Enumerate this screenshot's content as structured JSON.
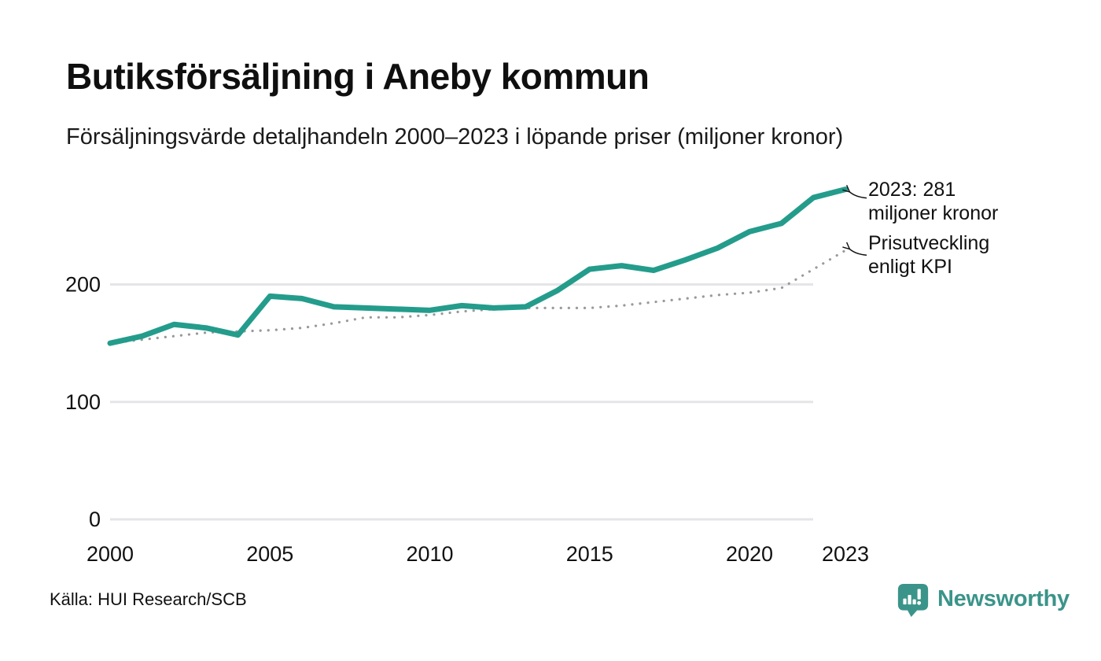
{
  "header": {
    "title": "Butiksförsäljning i Aneby kommun",
    "subtitle": "Försäljningsvärde detaljhandeln 2000–2023 i löpande priser (miljoner kronor)"
  },
  "chart_data": {
    "type": "line",
    "title": "Butiksförsäljning i Aneby kommun",
    "subtitle": "Försäljningsvärde detaljhandeln 2000–2023 i löpande priser (miljoner kronor)",
    "x": [
      2000,
      2001,
      2002,
      2003,
      2004,
      2005,
      2006,
      2007,
      2008,
      2009,
      2010,
      2011,
      2012,
      2013,
      2014,
      2015,
      2016,
      2017,
      2018,
      2019,
      2020,
      2021,
      2022,
      2023
    ],
    "series": [
      {
        "name": "Butiksförsäljning i löpande priser (miljoner kronor)",
        "style": "solid",
        "color": "#249c8c",
        "values": [
          150,
          156,
          166,
          163,
          157,
          190,
          188,
          181,
          180,
          179,
          178,
          182,
          180,
          181,
          195,
          213,
          216,
          212,
          221,
          231,
          245,
          252,
          274,
          281
        ]
      },
      {
        "name": "Prisutveckling enligt KPI",
        "style": "dotted",
        "color": "#9a9a9a",
        "values": [
          150,
          153,
          156,
          159,
          160,
          161,
          163,
          167,
          172,
          172,
          174,
          177,
          179,
          180,
          180,
          180,
          182,
          185,
          188,
          191,
          193,
          197,
          213,
          229
        ]
      }
    ],
    "ylim": [
      0,
      300
    ],
    "yticks": [
      0,
      100,
      200
    ],
    "xticks": [
      2000,
      2005,
      2010,
      2015,
      2020,
      2023
    ],
    "grid": "horizontal",
    "legend_position": "none (inline annotations with arrows)",
    "annotations": [
      {
        "lines": [
          "2023: 281",
          "miljoner kronor"
        ],
        "series": 0,
        "x": 2023,
        "y": 281
      },
      {
        "lines": [
          "Prisutveckling",
          "enligt KPI"
        ],
        "series": 1,
        "x": 2023,
        "y": 229
      }
    ]
  },
  "footer": {
    "source": "Källa: HUI Research/SCB",
    "brand": "Newsworthy"
  },
  "icons": {
    "brand_icon": "newsworthy-chart-bubble-icon"
  },
  "colors": {
    "sales_line": "#249c8c",
    "kpi_dots": "#9a9a9a",
    "gridline": "#e5e5e8",
    "text": "#111111",
    "brand": "#3b9489",
    "background": "#ffffff"
  }
}
